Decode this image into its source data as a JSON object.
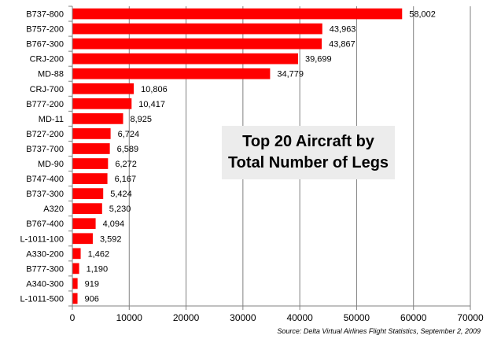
{
  "chart_data": {
    "type": "bar",
    "orientation": "horizontal",
    "title_lines": [
      "Top 20 Aircraft by",
      "Total Number of Legs"
    ],
    "source": "Source:  Delta Virtual Airlines Flight Statistics, September 2, 2009",
    "categories": [
      "B737-800",
      "B757-200",
      "B767-300",
      "CRJ-200",
      "MD-88",
      "CRJ-700",
      "B777-200",
      "MD-11",
      "B727-200",
      "B737-700",
      "MD-90",
      "B747-400",
      "B737-300",
      "A320",
      "B767-400",
      "L-1011-100",
      "A330-200",
      "B777-300",
      "A340-300",
      "L-1011-500"
    ],
    "values": [
      58002,
      43963,
      43867,
      39699,
      34779,
      10806,
      10417,
      8925,
      6724,
      6589,
      6272,
      6167,
      5424,
      5230,
      4094,
      3592,
      1462,
      1190,
      919,
      906
    ],
    "value_labels": [
      "58,002",
      "43,963",
      "43,867",
      "39,699",
      "34,779",
      "10,806",
      "10,417",
      "8,925",
      "6,724",
      "6,589",
      "6,272",
      "6,167",
      "5,424",
      "5,230",
      "4,094",
      "3,592",
      "1,462",
      "1,190",
      "919",
      "906"
    ],
    "xlim": [
      0,
      70000
    ],
    "xticks": [
      0,
      10000,
      20000,
      30000,
      40000,
      50000,
      60000,
      70000
    ],
    "xtick_labels": [
      "0",
      "10000",
      "20000",
      "30000",
      "40000",
      "50000",
      "60000",
      "70000"
    ],
    "grid": "vertical",
    "bar_color": "#ff0000"
  }
}
